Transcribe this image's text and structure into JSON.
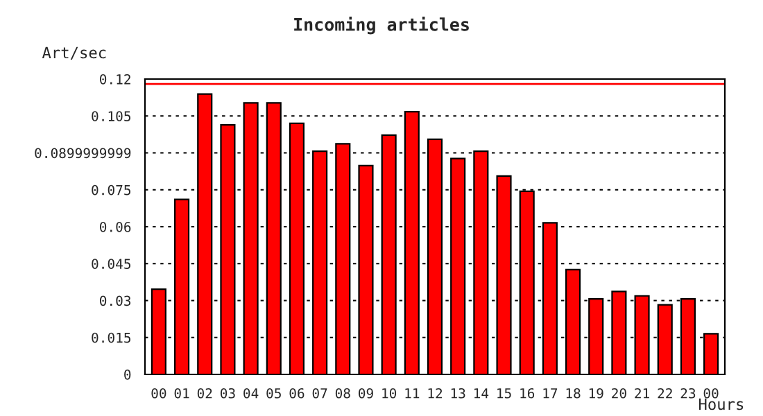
{
  "chart_data": {
    "type": "bar",
    "title": "Incoming articles",
    "ylabel": "Art/sec",
    "xlabel": "Hours",
    "categories": [
      "00",
      "01",
      "02",
      "03",
      "04",
      "05",
      "06",
      "07",
      "08",
      "09",
      "10",
      "11",
      "12",
      "13",
      "14",
      "15",
      "16",
      "17",
      "18",
      "19",
      "20",
      "21",
      "22",
      "23",
      "00"
    ],
    "values": [
      0.0346,
      0.0711,
      0.1139,
      0.1014,
      0.1103,
      0.1103,
      0.102,
      0.0907,
      0.0937,
      0.0848,
      0.0972,
      0.1067,
      0.0955,
      0.0877,
      0.0907,
      0.0806,
      0.0744,
      0.0616,
      0.0426,
      0.0307,
      0.0337,
      0.0319,
      0.0283,
      0.0307,
      0.0165
    ],
    "color": "#ff0000",
    "ylim": [
      0,
      0.12
    ],
    "yticks": [
      0,
      0.015,
      0.03,
      0.045,
      0.06,
      0.075,
      0.0899999999,
      0.105,
      0.12
    ],
    "ref_lines": [
      {
        "axis": "y",
        "value": 0.118,
        "color": "#ff0000",
        "line_style": "solid"
      }
    ],
    "grid": "y"
  }
}
